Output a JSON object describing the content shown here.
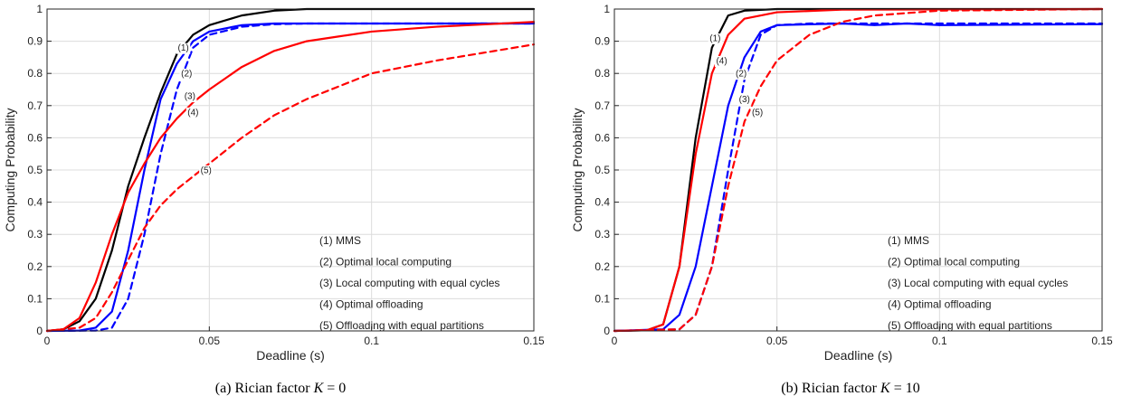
{
  "chart_data": [
    {
      "type": "line",
      "caption": "(a)  Rician factor K = 0",
      "caption_prefix": "(a)  Rician factor ",
      "caption_var": "K",
      "caption_rest": " = 0",
      "xlabel": "Deadline (s)",
      "ylabel": "Computing Probability",
      "xlim": [
        0,
        0.15
      ],
      "ylim": [
        0,
        1
      ],
      "xticks": [
        0,
        0.05,
        0.1,
        0.15
      ],
      "xtick_labels": [
        "0",
        "0.05",
        "0.1",
        "0.15"
      ],
      "yticks": [
        0,
        0.1,
        0.2,
        0.3,
        0.4,
        0.5,
        0.6,
        0.7,
        0.8,
        0.9,
        1
      ],
      "ytick_labels": [
        "0",
        "0.1",
        "0.2",
        "0.3",
        "0.4",
        "0.5",
        "0.6",
        "0.7",
        "0.8",
        "0.9",
        "1"
      ],
      "grid": true,
      "legend_position": "bottom-right",
      "legend": [
        "(1) MMS",
        "(2) Optimal local computing",
        "(3) Local computing with equal cycles",
        "(4) Optimal offloading",
        "(5) Offloading with equal partitions"
      ],
      "series": [
        {
          "label": "(1)",
          "color": "#000000",
          "dash": "solid",
          "label_at": [
            0.042,
            0.88
          ],
          "points": [
            [
              0,
              0
            ],
            [
              0.005,
              0.005
            ],
            [
              0.01,
              0.03
            ],
            [
              0.015,
              0.1
            ],
            [
              0.02,
              0.25
            ],
            [
              0.025,
              0.45
            ],
            [
              0.03,
              0.6
            ],
            [
              0.035,
              0.74
            ],
            [
              0.04,
              0.86
            ],
            [
              0.045,
              0.92
            ],
            [
              0.05,
              0.95
            ],
            [
              0.06,
              0.98
            ],
            [
              0.07,
              0.995
            ],
            [
              0.08,
              1
            ],
            [
              0.15,
              1
            ]
          ]
        },
        {
          "label": "(2)",
          "color": "#0000ff",
          "dash": "solid",
          "label_at": [
            0.043,
            0.8
          ],
          "points": [
            [
              0,
              0
            ],
            [
              0.01,
              0.001
            ],
            [
              0.015,
              0.01
            ],
            [
              0.02,
              0.06
            ],
            [
              0.025,
              0.25
            ],
            [
              0.03,
              0.5
            ],
            [
              0.035,
              0.72
            ],
            [
              0.04,
              0.83
            ],
            [
              0.045,
              0.9
            ],
            [
              0.05,
              0.93
            ],
            [
              0.06,
              0.95
            ],
            [
              0.07,
              0.955
            ],
            [
              0.15,
              0.955
            ]
          ]
        },
        {
          "label": "(3)",
          "color": "#0000ff",
          "dash": "dashed",
          "label_at": [
            0.044,
            0.73
          ],
          "points": [
            [
              0,
              0
            ],
            [
              0.015,
              0.001
            ],
            [
              0.02,
              0.01
            ],
            [
              0.025,
              0.1
            ],
            [
              0.03,
              0.3
            ],
            [
              0.035,
              0.55
            ],
            [
              0.04,
              0.75
            ],
            [
              0.045,
              0.88
            ],
            [
              0.05,
              0.92
            ],
            [
              0.06,
              0.945
            ],
            [
              0.07,
              0.953
            ],
            [
              0.08,
              0.955
            ],
            [
              0.15,
              0.955
            ]
          ]
        },
        {
          "label": "(4)",
          "color": "#ff0000",
          "dash": "solid",
          "label_at": [
            0.045,
            0.68
          ],
          "points": [
            [
              0,
              0
            ],
            [
              0.005,
              0.005
            ],
            [
              0.01,
              0.04
            ],
            [
              0.015,
              0.15
            ],
            [
              0.02,
              0.3
            ],
            [
              0.025,
              0.43
            ],
            [
              0.03,
              0.52
            ],
            [
              0.035,
              0.6
            ],
            [
              0.04,
              0.66
            ],
            [
              0.045,
              0.71
            ],
            [
              0.05,
              0.75
            ],
            [
              0.06,
              0.82
            ],
            [
              0.07,
              0.87
            ],
            [
              0.08,
              0.9
            ],
            [
              0.09,
              0.915
            ],
            [
              0.1,
              0.93
            ],
            [
              0.12,
              0.945
            ],
            [
              0.15,
              0.96
            ]
          ]
        },
        {
          "label": "(5)",
          "color": "#ff0000",
          "dash": "dashed",
          "label_at": [
            0.049,
            0.5
          ],
          "points": [
            [
              0,
              0
            ],
            [
              0.01,
              0.01
            ],
            [
              0.015,
              0.04
            ],
            [
              0.02,
              0.12
            ],
            [
              0.025,
              0.22
            ],
            [
              0.03,
              0.32
            ],
            [
              0.035,
              0.39
            ],
            [
              0.04,
              0.44
            ],
            [
              0.045,
              0.48
            ],
            [
              0.05,
              0.52
            ],
            [
              0.06,
              0.6
            ],
            [
              0.07,
              0.67
            ],
            [
              0.08,
              0.72
            ],
            [
              0.09,
              0.76
            ],
            [
              0.1,
              0.8
            ],
            [
              0.12,
              0.84
            ],
            [
              0.15,
              0.89
            ]
          ]
        }
      ]
    },
    {
      "type": "line",
      "caption": "(b)  Rician factor K = 10",
      "caption_prefix": "(b)  Rician factor ",
      "caption_var": "K",
      "caption_rest": " = 10",
      "xlabel": "Deadline (s)",
      "ylabel": "Computing Probability",
      "xlim": [
        0,
        0.15
      ],
      "ylim": [
        0,
        1
      ],
      "xticks": [
        0,
        0.05,
        0.1,
        0.15
      ],
      "xtick_labels": [
        "0",
        "0.05",
        "0.1",
        "0.15"
      ],
      "yticks": [
        0,
        0.1,
        0.2,
        0.3,
        0.4,
        0.5,
        0.6,
        0.7,
        0.8,
        0.9,
        1
      ],
      "ytick_labels": [
        "0",
        "0.1",
        "0.2",
        "0.3",
        "0.4",
        "0.5",
        "0.6",
        "0.7",
        "0.8",
        "0.9",
        "1"
      ],
      "grid": true,
      "legend_position": "bottom-right",
      "legend": [
        "(1) MMS",
        "(2) Optimal local computing",
        "(3) Local computing with equal cycles",
        "(4) Optimal offloading",
        "(5) Offloading with equal partitions"
      ],
      "series": [
        {
          "label": "(1)",
          "color": "#000000",
          "dash": "solid",
          "label_at": [
            0.031,
            0.91
          ],
          "points": [
            [
              0,
              0
            ],
            [
              0.01,
              0.002
            ],
            [
              0.015,
              0.02
            ],
            [
              0.02,
              0.2
            ],
            [
              0.025,
              0.6
            ],
            [
              0.03,
              0.88
            ],
            [
              0.035,
              0.98
            ],
            [
              0.04,
              0.995
            ],
            [
              0.05,
              1
            ],
            [
              0.15,
              1
            ]
          ]
        },
        {
          "label": "(2)",
          "color": "#0000ff",
          "dash": "solid",
          "label_at": [
            0.039,
            0.8
          ],
          "points": [
            [
              0,
              0
            ],
            [
              0.015,
              0.005
            ],
            [
              0.02,
              0.05
            ],
            [
              0.025,
              0.2
            ],
            [
              0.03,
              0.45
            ],
            [
              0.035,
              0.7
            ],
            [
              0.04,
              0.85
            ],
            [
              0.045,
              0.93
            ],
            [
              0.05,
              0.95
            ],
            [
              0.07,
              0.955
            ],
            [
              0.08,
              0.95
            ],
            [
              0.09,
              0.955
            ],
            [
              0.1,
              0.95
            ],
            [
              0.15,
              0.953
            ]
          ]
        },
        {
          "label": "(3)",
          "color": "#0000ff",
          "dash": "dashed",
          "label_at": [
            0.04,
            0.72
          ],
          "points": [
            [
              0,
              0
            ],
            [
              0.02,
              0.005
            ],
            [
              0.025,
              0.05
            ],
            [
              0.03,
              0.2
            ],
            [
              0.035,
              0.5
            ],
            [
              0.04,
              0.78
            ],
            [
              0.045,
              0.92
            ],
            [
              0.05,
              0.95
            ],
            [
              0.06,
              0.955
            ],
            [
              0.15,
              0.955
            ]
          ]
        },
        {
          "label": "(4)",
          "color": "#ff0000",
          "dash": "solid",
          "label_at": [
            0.033,
            0.84
          ],
          "points": [
            [
              0,
              0
            ],
            [
              0.01,
              0.002
            ],
            [
              0.015,
              0.02
            ],
            [
              0.02,
              0.2
            ],
            [
              0.025,
              0.55
            ],
            [
              0.03,
              0.8
            ],
            [
              0.035,
              0.92
            ],
            [
              0.04,
              0.97
            ],
            [
              0.05,
              0.99
            ],
            [
              0.07,
              0.998
            ],
            [
              0.15,
              1
            ]
          ]
        },
        {
          "label": "(5)",
          "color": "#ff0000",
          "dash": "dashed",
          "label_at": [
            0.044,
            0.68
          ],
          "points": [
            [
              0,
              0
            ],
            [
              0.02,
              0.005
            ],
            [
              0.025,
              0.05
            ],
            [
              0.03,
              0.2
            ],
            [
              0.035,
              0.45
            ],
            [
              0.04,
              0.65
            ],
            [
              0.045,
              0.76
            ],
            [
              0.05,
              0.84
            ],
            [
              0.06,
              0.92
            ],
            [
              0.07,
              0.96
            ],
            [
              0.08,
              0.98
            ],
            [
              0.1,
              0.995
            ],
            [
              0.15,
              1
            ]
          ]
        }
      ]
    }
  ]
}
